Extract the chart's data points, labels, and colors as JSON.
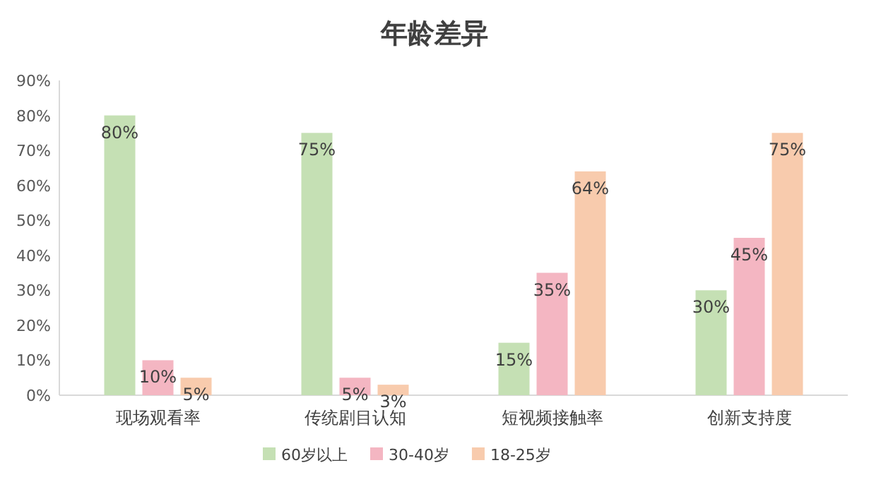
{
  "chart_data": {
    "type": "bar",
    "title": "年龄差异",
    "categories": [
      "现场观看率",
      "传统剧目认知",
      "短视频接触率",
      "创新支持度"
    ],
    "series": [
      {
        "name": "60岁以上",
        "color": "#c5e0b4",
        "values": [
          80,
          75,
          15,
          30
        ],
        "value_labels": [
          "80%",
          "75%",
          "15%",
          "30%"
        ]
      },
      {
        "name": "30-40岁",
        "color": "#f4b6c2",
        "values": [
          10,
          5,
          35,
          45
        ],
        "value_labels": [
          "10%",
          "5%",
          "35%",
          "45%"
        ]
      },
      {
        "name": "18-25岁",
        "color": "#f8cbad",
        "values": [
          5,
          3,
          64,
          75
        ],
        "value_labels": [
          "5%",
          "3%",
          "64%",
          "75%"
        ]
      }
    ],
    "ylim": [
      0,
      90
    ],
    "yticks": [
      {
        "value": 0,
        "label": "0%"
      },
      {
        "value": 10,
        "label": "10%"
      },
      {
        "value": 20,
        "label": "20%"
      },
      {
        "value": 30,
        "label": "30%"
      },
      {
        "value": 40,
        "label": "40%"
      },
      {
        "value": 50,
        "label": "50%"
      },
      {
        "value": 60,
        "label": "60%"
      },
      {
        "value": 70,
        "label": "70%"
      },
      {
        "value": 80,
        "label": "80%"
      },
      {
        "value": 90,
        "label": "90%"
      }
    ],
    "legend": "bottom"
  }
}
